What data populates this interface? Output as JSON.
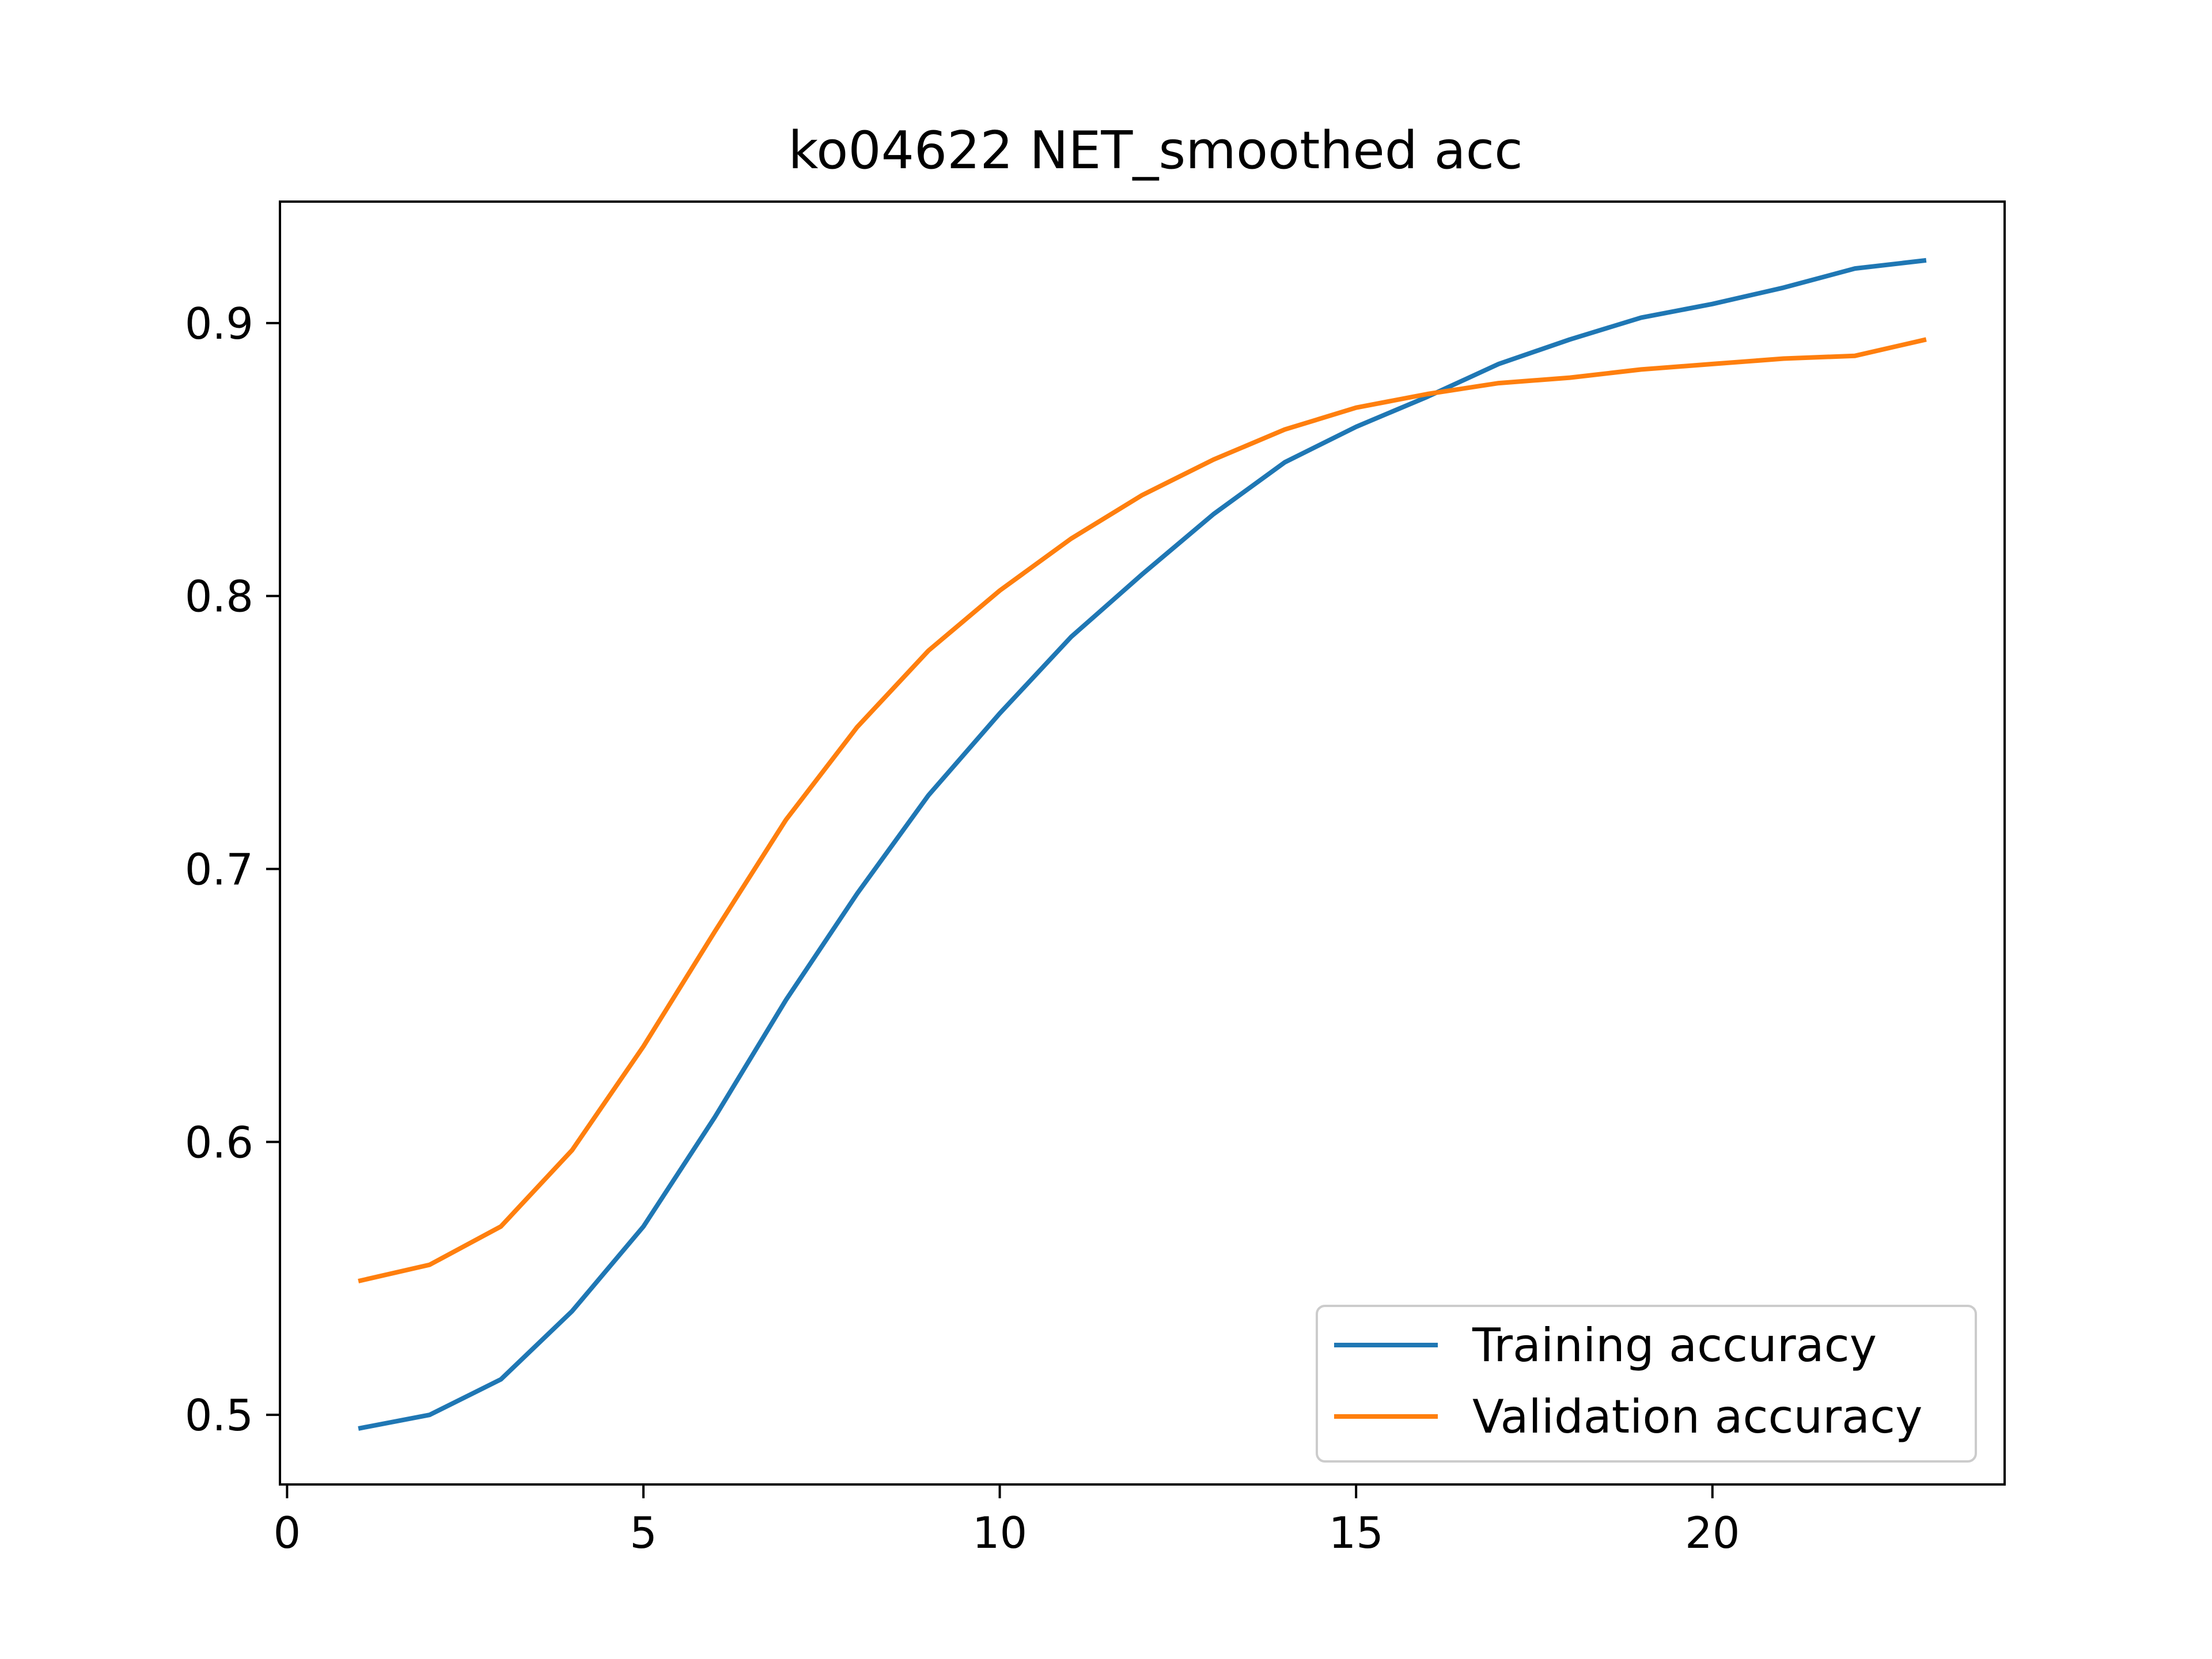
{
  "chart_data": {
    "type": "line",
    "title": "ko04622 NET_smoothed acc",
    "xlabel": "",
    "ylabel": "",
    "xlim": [
      -0.1,
      24.1
    ],
    "ylim": [
      0.4745,
      0.9445
    ],
    "x_ticks": [
      0,
      5,
      10,
      15,
      20
    ],
    "y_ticks": [
      0.5,
      0.6,
      0.7,
      0.8,
      0.9
    ],
    "x_tick_labels": [
      "0",
      "5",
      "10",
      "15",
      "20"
    ],
    "y_tick_labels": [
      "0.5",
      "0.6",
      "0.7",
      "0.8",
      "0.9"
    ],
    "grid": false,
    "legend_position": "lower right",
    "x": [
      1,
      2,
      3,
      4,
      5,
      6,
      7,
      8,
      9,
      10,
      11,
      12,
      13,
      14,
      15,
      16,
      17,
      18,
      19,
      20,
      21,
      22,
      23
    ],
    "series": [
      {
        "name": "Training  accuracy",
        "color": "#1f77b4",
        "values": [
          0.495,
          0.5,
          0.513,
          0.538,
          0.569,
          0.609,
          0.652,
          0.691,
          0.727,
          0.757,
          0.785,
          0.808,
          0.83,
          0.849,
          0.862,
          0.873,
          0.885,
          0.894,
          0.902,
          0.907,
          0.913,
          0.92,
          0.923
        ]
      },
      {
        "name": "Validation  accuracy",
        "color": "#ff7f0e",
        "values": [
          0.549,
          0.555,
          0.569,
          0.597,
          0.635,
          0.677,
          0.718,
          0.752,
          0.78,
          0.802,
          0.821,
          0.837,
          0.85,
          0.861,
          0.869,
          0.874,
          0.878,
          0.88,
          0.883,
          0.885,
          0.887,
          0.888,
          0.894
        ]
      }
    ]
  }
}
